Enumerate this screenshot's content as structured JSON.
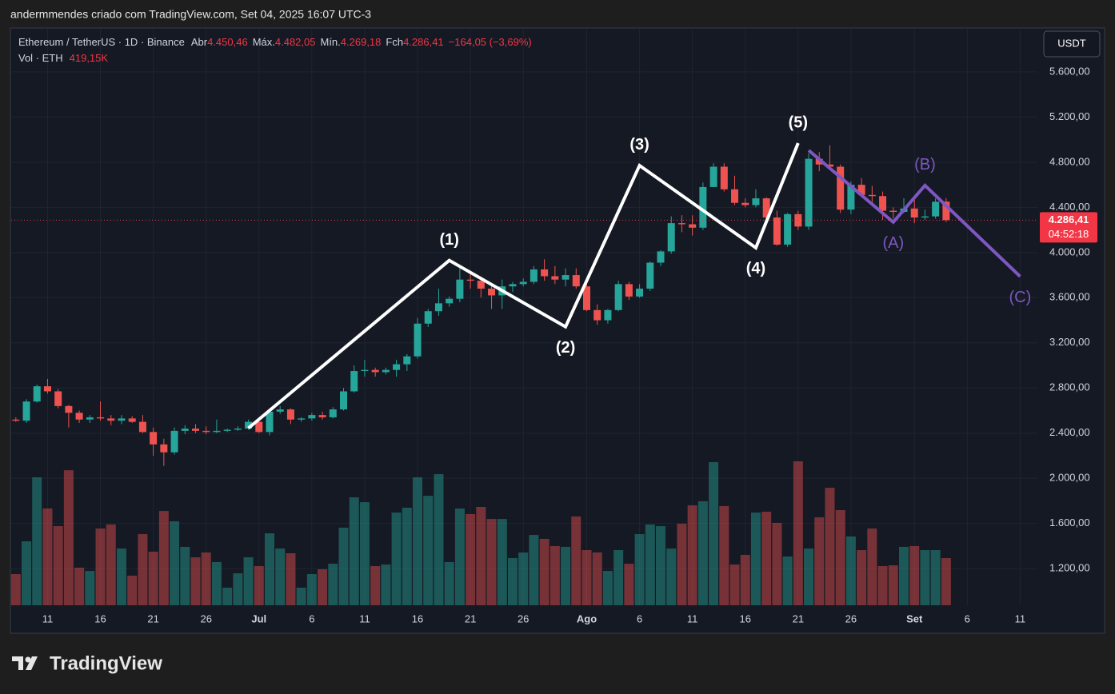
{
  "header": "andermmendes criado com TradingView.com, Set 04, 2025 16:07 UTC-3",
  "currency": "USDT",
  "brand": "TradingView",
  "chart_data": {
    "type": "candlestick",
    "title": "Ethereum / TetherUS · 1D · Binance",
    "up_color": "#26a69a",
    "down_color": "#ef5350",
    "x": [
      "2025-06-08",
      "2025-06-09",
      "2025-06-10",
      "2025-06-11",
      "2025-06-12",
      "2025-06-13",
      "2025-06-14",
      "2025-06-15",
      "2025-06-16",
      "2025-06-17",
      "2025-06-18",
      "2025-06-19",
      "2025-06-20",
      "2025-06-21",
      "2025-06-22",
      "2025-06-23",
      "2025-06-24",
      "2025-06-25",
      "2025-06-26",
      "2025-06-27",
      "2025-06-28",
      "2025-06-29",
      "2025-06-30",
      "2025-07-01",
      "2025-07-02",
      "2025-07-03",
      "2025-07-04",
      "2025-07-05",
      "2025-07-06",
      "2025-07-07",
      "2025-07-08",
      "2025-07-09",
      "2025-07-10",
      "2025-07-11",
      "2025-07-12",
      "2025-07-13",
      "2025-07-14",
      "2025-07-15",
      "2025-07-16",
      "2025-07-17",
      "2025-07-18",
      "2025-07-19",
      "2025-07-20",
      "2025-07-21",
      "2025-07-22",
      "2025-07-23",
      "2025-07-24",
      "2025-07-25",
      "2025-07-26",
      "2025-07-27",
      "2025-07-28",
      "2025-07-29",
      "2025-07-30",
      "2025-07-31",
      "2025-08-01",
      "2025-08-02",
      "2025-08-03",
      "2025-08-04",
      "2025-08-05",
      "2025-08-06",
      "2025-08-07",
      "2025-08-08",
      "2025-08-09",
      "2025-08-10",
      "2025-08-11",
      "2025-08-12",
      "2025-08-13",
      "2025-08-14",
      "2025-08-15",
      "2025-08-16",
      "2025-08-17",
      "2025-08-18",
      "2025-08-19",
      "2025-08-20",
      "2025-08-21",
      "2025-08-22",
      "2025-08-23",
      "2025-08-24",
      "2025-08-25",
      "2025-08-26",
      "2025-08-27",
      "2025-08-28",
      "2025-08-29",
      "2025-08-30",
      "2025-08-31",
      "2025-09-01",
      "2025-09-02",
      "2025-09-03",
      "2025-09-04"
    ],
    "open": [
      2520,
      2510,
      2680,
      2815,
      2770,
      2640,
      2580,
      2520,
      2540,
      2530,
      2510,
      2530,
      2500,
      2410,
      2300,
      2230,
      2420,
      2440,
      2420,
      2410,
      2420,
      2430,
      2440,
      2500,
      2410,
      2590,
      2610,
      2520,
      2530,
      2560,
      2540,
      2610,
      2770,
      2950,
      2960,
      2940,
      2960,
      3010,
      3080,
      3370,
      3480,
      3550,
      3590,
      3760,
      3750,
      3680,
      3620,
      3700,
      3720,
      3740,
      3850,
      3790,
      3760,
      3800,
      3700,
      3490,
      3400,
      3490,
      3720,
      3610,
      3680,
      3910,
      4010,
      4260,
      4250,
      4220,
      4580,
      4760,
      4560,
      4440,
      4420,
      4480,
      4310,
      4070,
      4340,
      4230,
      4830,
      4780,
      4760,
      4380,
      4600,
      4510,
      4500,
      4370,
      4360,
      4390,
      4310,
      4320,
      4450.46
    ],
    "high": [
      2540,
      2700,
      2830,
      2880,
      2790,
      2650,
      2600,
      2560,
      2680,
      2560,
      2560,
      2550,
      2560,
      2450,
      2350,
      2450,
      2470,
      2480,
      2460,
      2520,
      2440,
      2460,
      2520,
      2520,
      2610,
      2640,
      2620,
      2540,
      2580,
      2590,
      2630,
      2800,
      3000,
      3050,
      2980,
      2980,
      3050,
      3100,
      3420,
      3500,
      3680,
      3610,
      3860,
      3810,
      3780,
      3720,
      3760,
      3740,
      3770,
      3880,
      3940,
      3880,
      3860,
      3860,
      3720,
      3540,
      3500,
      3750,
      3740,
      3720,
      3920,
      4020,
      4320,
      4330,
      4330,
      4620,
      4790,
      4790,
      4680,
      4480,
      4560,
      4490,
      4370,
      4350,
      4370,
      4880,
      4890,
      4950,
      4780,
      4630,
      4660,
      4590,
      4540,
      4400,
      4480,
      4480,
      4380,
      4480,
      4482.05
    ],
    "low": [
      2500,
      2490,
      2670,
      2750,
      2620,
      2450,
      2490,
      2490,
      2510,
      2470,
      2480,
      2490,
      2400,
      2200,
      2110,
      2210,
      2390,
      2400,
      2390,
      2400,
      2410,
      2420,
      2430,
      2400,
      2380,
      2570,
      2480,
      2500,
      2510,
      2520,
      2530,
      2600,
      2760,
      2900,
      2900,
      2920,
      2900,
      2950,
      3060,
      3340,
      3440,
      3520,
      3560,
      3680,
      3600,
      3500,
      3500,
      3650,
      3700,
      3720,
      3750,
      3720,
      3700,
      3680,
      3480,
      3360,
      3370,
      3480,
      3580,
      3600,
      3660,
      3880,
      3990,
      4180,
      4150,
      4200,
      4580,
      4540,
      4420,
      4400,
      4400,
      4240,
      4060,
      4050,
      4200,
      4200,
      4720,
      4740,
      4350,
      4340,
      4500,
      4440,
      4290,
      4300,
      4350,
      4260,
      4290,
      4300,
      4269.18
    ],
    "close": [
      2510,
      2680,
      2815,
      2770,
      2640,
      2580,
      2520,
      2540,
      2530,
      2510,
      2530,
      2500,
      2410,
      2300,
      2230,
      2420,
      2440,
      2420,
      2410,
      2420,
      2430,
      2440,
      2500,
      2410,
      2590,
      2610,
      2520,
      2530,
      2560,
      2540,
      2610,
      2770,
      2950,
      2960,
      2940,
      2960,
      3010,
      3080,
      3370,
      3480,
      3550,
      3590,
      3760,
      3750,
      3680,
      3620,
      3700,
      3720,
      3740,
      3850,
      3790,
      3760,
      3800,
      3700,
      3490,
      3400,
      3490,
      3720,
      3610,
      3680,
      3910,
      4010,
      4260,
      4250,
      4220,
      4580,
      4760,
      4560,
      4440,
      4420,
      4480,
      4310,
      4070,
      4340,
      4230,
      4830,
      4780,
      4760,
      4380,
      4600,
      4510,
      4500,
      4370,
      4360,
      4390,
      4310,
      4320,
      4450,
      4286.41
    ],
    "volume": {
      "name": "Vol · ETH",
      "values": [
        277000,
        568000,
        1137000,
        860000,
        703000,
        1200000,
        334000,
        305000,
        682000,
        718000,
        504000,
        263000,
        632000,
        476000,
        838000,
        746000,
        519000,
        426000,
        469000,
        384000,
        156000,
        284000,
        426000,
        348000,
        639000,
        504000,
        462000,
        156000,
        277000,
        320000,
        369000,
        689000,
        959000,
        916000,
        348000,
        362000,
        824000,
        867000,
        1137000,
        973000,
        1165000,
        384000,
        860000,
        810000,
        874000,
        767000,
        767000,
        419000,
        469000,
        625000,
        590000,
        526000,
        519000,
        789000,
        490000,
        469000,
        305000,
        490000,
        369000,
        632000,
        718000,
        703000,
        504000,
        725000,
        888000,
        924000,
        1272000,
        881000,
        362000,
        448000,
        824000,
        831000,
        732000,
        433000,
        1279000,
        504000,
        781000,
        1044000,
        845000,
        611000,
        490000,
        682000,
        348000,
        355000,
        519000,
        526000,
        490000,
        490000,
        419150
      ],
      "last": {
        "value": 419150,
        "label": "419,15K"
      }
    },
    "ohlc_legend": [
      {
        "name": "Abr",
        "value": 4450.46,
        "label": "4.450,46"
      },
      {
        "name": "Máx.",
        "value": 4482.05,
        "label": "4.482,05"
      },
      {
        "name": "Mín.",
        "value": 4269.18,
        "label": "4.269,18"
      },
      {
        "name": "Fch",
        "value": 4286.41,
        "label": "4.286,41"
      }
    ],
    "change": {
      "value": -164.05,
      "percent": -3.69,
      "label": "−164,05 (−3,69%)"
    },
    "last_price": {
      "value": 4286.41,
      "label": "4.286,41",
      "countdown": "04:52:18"
    },
    "xlim": [
      "2025-06-07T13:27:00Z",
      "2025-09-12T15:16:00Z"
    ],
    "xticks": [
      {
        "value": "2025-06-11",
        "label": "11"
      },
      {
        "value": "2025-06-16",
        "label": "16"
      },
      {
        "value": "2025-06-21",
        "label": "21"
      },
      {
        "value": "2025-06-26",
        "label": "26"
      },
      {
        "value": "2025-07-01",
        "label": "Jul"
      },
      {
        "value": "2025-07-06",
        "label": "6"
      },
      {
        "value": "2025-07-11",
        "label": "11"
      },
      {
        "value": "2025-07-16",
        "label": "16"
      },
      {
        "value": "2025-07-21",
        "label": "21"
      },
      {
        "value": "2025-07-26",
        "label": "26"
      },
      {
        "value": "2025-08-01",
        "label": "Ago"
      },
      {
        "value": "2025-08-06",
        "label": "6"
      },
      {
        "value": "2025-08-11",
        "label": "11"
      },
      {
        "value": "2025-08-16",
        "label": "16"
      },
      {
        "value": "2025-08-21",
        "label": "21"
      },
      {
        "value": "2025-08-26",
        "label": "26"
      },
      {
        "value": "2025-09-01",
        "label": "Set"
      },
      {
        "value": "2025-09-06",
        "label": "6"
      },
      {
        "value": "2025-09-11",
        "label": "11"
      }
    ],
    "ylim": [
      875,
      5982
    ],
    "yticks": [
      {
        "value": 1200,
        "label": "1.200,00"
      },
      {
        "value": 1600,
        "label": "1.600,00"
      },
      {
        "value": 2000,
        "label": "2.000,00"
      },
      {
        "value": 2400,
        "label": "2.400,00"
      },
      {
        "value": 2800,
        "label": "2.800,00"
      },
      {
        "value": 3200,
        "label": "3.200,00"
      },
      {
        "value": 3600,
        "label": "3.600,00"
      },
      {
        "value": 4000,
        "label": "4.000,00"
      },
      {
        "value": 4400,
        "label": "4.400,00"
      },
      {
        "value": 4800,
        "label": "4.800,00"
      },
      {
        "value": 5200,
        "label": "5.200,00"
      },
      {
        "value": 5600,
        "label": "5.600,00"
      }
    ],
    "grid": true,
    "waves": [
      {
        "color": "#ffffff",
        "bold": true,
        "labels": [
          null,
          "(1)",
          "(2)",
          "(3)",
          "(4)",
          "(5)"
        ],
        "x": [
          "2025-06-30",
          "2025-07-19",
          "2025-07-30",
          "2025-08-06",
          "2025-08-17",
          "2025-08-21"
        ],
        "y": [
          2444,
          3930,
          3342,
          4771,
          4042,
          4969
        ]
      },
      {
        "color": "#7e57c2",
        "bold": false,
        "labels": [
          null,
          "(A)",
          "(B)",
          "(C)"
        ],
        "x": [
          "2025-08-22",
          "2025-08-30",
          "2025-09-02",
          "2025-09-11"
        ],
        "y": [
          4905,
          4269,
          4594,
          3788
        ]
      }
    ]
  }
}
